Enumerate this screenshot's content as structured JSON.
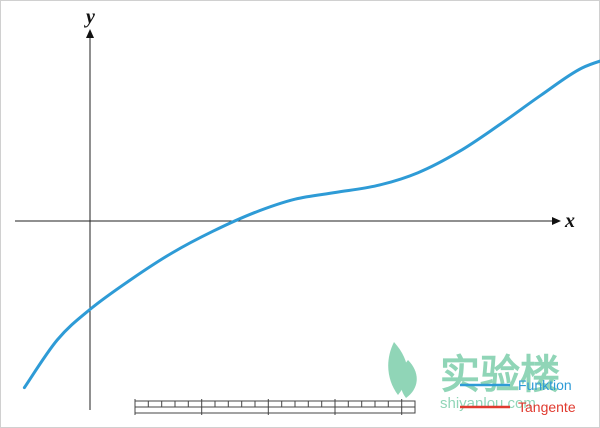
{
  "chart_data": {
    "type": "line",
    "xlabel": "x",
    "ylabel": "y",
    "xlim": [
      -1.15,
      7.2
    ],
    "ylim": [
      -2.65,
      2.9
    ],
    "grid": false,
    "legend_position": "bottom-right",
    "series": [
      {
        "name": "Funktion",
        "color": "#2e9bd6",
        "x": [
          -0.8,
          -0.4,
          0.0,
          0.5,
          1.0,
          1.5,
          2.0,
          2.5,
          3.0,
          3.5,
          4.0,
          4.5,
          5.0,
          5.5,
          6.0,
          6.5
        ],
        "y": [
          -2.45,
          -1.75,
          -1.3,
          -0.86,
          -0.47,
          -0.15,
          0.12,
          0.32,
          0.42,
          0.52,
          0.71,
          1.02,
          1.42,
          1.85,
          2.25,
          2.45
        ]
      },
      {
        "name": "Tangente",
        "color": "#e03a2f",
        "x": [],
        "y": []
      }
    ],
    "slider_ticks": 21
  },
  "watermark": {
    "chinese": "实验楼",
    "url": "shiyanlou.com",
    "color": "#36b37e"
  }
}
